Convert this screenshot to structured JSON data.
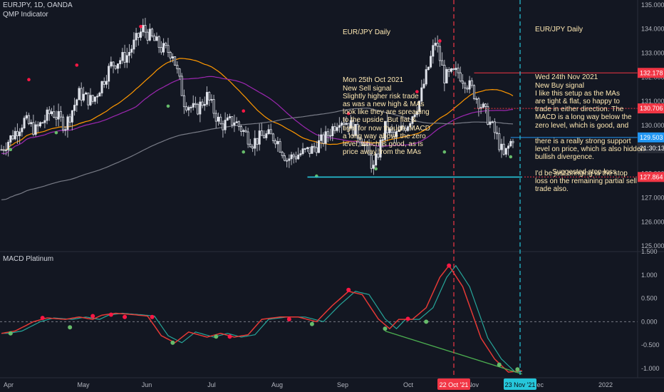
{
  "header": {
    "symbol_line": "EURJPY, 1D, OANDA",
    "indicator_name": "QMP Indicator",
    "macd_name": "MACD Platinum"
  },
  "notes": {
    "left": {
      "title": "EUR/JPY Daily",
      "lines": [
        "Mon 25th Oct 2021",
        "New Sell signal",
        "Slightly higher risk trade",
        "as was a new high & MAs",
        "look like they are spreading",
        "to the upside. But flat &",
        "tight for now though. MACD",
        "a long way above the zero",
        "level, which is good, as is",
        "price away from the MAs"
      ]
    },
    "right": {
      "title": "EUR/JPY Daily",
      "lines": [
        "Wed 24th Nov 2021",
        "New Buy signal",
        "I like this setup as the MAs",
        "are tight & flat, so happy to",
        "trade in either direction. The",
        "MACD is a long way below the",
        "zero level, which is good, and",
        "",
        "there is a really strong support",
        "level on price, which is also hidden",
        "bullish divergence.",
        "",
        "I'd be just bringing in the stop",
        "loss on the remaining partial sell",
        "trade also."
      ]
    },
    "stop": "Suggested stop loss"
  },
  "colors": {
    "background": "#131722",
    "up": "#e0e3eb",
    "down": "#e0e3eb",
    "ma_orange": "#ff9800",
    "ma_purple": "#9c27b0",
    "ma_gray": "#787b86",
    "sell_dot": "#ff1744",
    "buy_dot": "#66bb6a",
    "red_line": "#f23645",
    "cyan_line": "#26c6da",
    "blue_line": "#2196f3",
    "macd_line": "#e53935",
    "signal_line": "#26a69a",
    "divergence": "#4caf50",
    "note_text": "#ffe9b3"
  },
  "chart_data": [
    {
      "type": "candlestick",
      "title": "EURJPY, 1D, OANDA",
      "x_labels": [
        "Apr",
        "May",
        "Jun",
        "Jul",
        "Aug",
        "Sep",
        "Oct",
        "Nov",
        "Dec",
        "2022"
      ],
      "y_ticks": [
        125.0,
        126.0,
        127.0,
        128.0,
        129.0,
        130.0,
        131.0,
        132.0,
        133.0,
        134.0,
        135.0
      ],
      "y_tick_labels": [
        "125.000",
        "126.000",
        "127.000",
        "128.000",
        "129.000",
        "130.000",
        "131.000",
        "132.000",
        "133.000",
        "134.000",
        "135.000"
      ],
      "ylim": [
        124.8,
        135.2
      ],
      "grid": false,
      "close_path": [
        [
          0,
          129.0
        ],
        [
          5,
          129.6
        ],
        [
          10,
          130.2
        ],
        [
          15,
          129.8
        ],
        [
          22,
          130.6
        ],
        [
          28,
          130.0
        ],
        [
          34,
          131.3
        ],
        [
          40,
          131.0
        ],
        [
          48,
          132.5
        ],
        [
          55,
          132.9
        ],
        [
          62,
          134.0
        ],
        [
          66,
          133.6
        ],
        [
          70,
          133.2
        ],
        [
          75,
          133.0
        ],
        [
          80,
          131.0
        ],
        [
          85,
          130.6
        ],
        [
          90,
          131.2
        ],
        [
          96,
          130.0
        ],
        [
          102,
          130.2
        ],
        [
          110,
          129.3
        ],
        [
          115,
          129.6
        ],
        [
          120,
          129.5
        ],
        [
          125,
          128.6
        ],
        [
          130,
          128.8
        ],
        [
          136,
          129.0
        ],
        [
          142,
          129.5
        ],
        [
          148,
          130.3
        ],
        [
          152,
          130.1
        ],
        [
          158,
          129.4
        ],
        [
          163,
          128.2
        ],
        [
          168,
          129.9
        ],
        [
          172,
          129.5
        ],
        [
          178,
          130.1
        ],
        [
          183,
          131.0
        ],
        [
          190,
          133.5
        ],
        [
          194,
          132.0
        ],
        [
          200,
          132.2
        ],
        [
          206,
          131.5
        ],
        [
          212,
          130.5
        ],
        [
          217,
          129.5
        ],
        [
          220,
          128.7
        ],
        [
          224,
          129.5
        ]
      ],
      "bars": 224,
      "price_levels": [
        {
          "value": 132.178,
          "label": "132.178",
          "color": "#f23645"
        },
        {
          "value": 130.706,
          "label": "130.706",
          "color": "#f23645",
          "style": "dotted"
        },
        {
          "value": 129.503,
          "label": "129.503",
          "color": "#2196f3"
        },
        {
          "value": 127.864,
          "label": "127.864",
          "color": "#f23645",
          "style": "dotted"
        }
      ],
      "countdown_label": "21:30:13",
      "support_level": 127.86,
      "sell_signals": [
        [
          12,
          131.9
        ],
        [
          33,
          132.5
        ],
        [
          61,
          134.1
        ],
        [
          106,
          130.6
        ],
        [
          152,
          130.5
        ],
        [
          182,
          131.4
        ],
        [
          192,
          133.5
        ]
      ],
      "buy_signals": [
        [
          4,
          129.0
        ],
        [
          24,
          129.7
        ],
        [
          73,
          130.8
        ],
        [
          106,
          128.9
        ],
        [
          138,
          127.9
        ],
        [
          164,
          128.2
        ],
        [
          194,
          128.9
        ],
        [
          223,
          128.7
        ]
      ]
    },
    {
      "type": "line",
      "title": "MACD Platinum",
      "y_ticks": [
        -1.0,
        -0.5,
        0.0,
        0.5,
        1.0,
        1.5
      ],
      "y_tick_labels": [
        "-1.000",
        "-0.500",
        "0.000",
        "0.500",
        "1.000",
        "1.500"
      ],
      "ylim": [
        -1.2,
        1.5
      ],
      "macd_path": [
        [
          0,
          -0.25
        ],
        [
          6,
          -0.2
        ],
        [
          14,
          0.0
        ],
        [
          20,
          0.08
        ],
        [
          28,
          0.05
        ],
        [
          34,
          0.1
        ],
        [
          40,
          0.05
        ],
        [
          44,
          0.14
        ],
        [
          50,
          0.18
        ],
        [
          58,
          0.15
        ],
        [
          64,
          0.12
        ],
        [
          70,
          -0.3
        ],
        [
          76,
          -0.45
        ],
        [
          82,
          -0.22
        ],
        [
          90,
          -0.33
        ],
        [
          96,
          -0.25
        ],
        [
          102,
          -0.33
        ],
        [
          108,
          -0.28
        ],
        [
          114,
          0.05
        ],
        [
          122,
          0.1
        ],
        [
          130,
          0.1
        ],
        [
          138,
          0.0
        ],
        [
          145,
          0.35
        ],
        [
          152,
          0.65
        ],
        [
          158,
          0.58
        ],
        [
          165,
          0.06
        ],
        [
          170,
          -0.15
        ],
        [
          174,
          0.05
        ],
        [
          180,
          0.05
        ],
        [
          186,
          0.3
        ],
        [
          192,
          0.95
        ],
        [
          196,
          1.2
        ],
        [
          202,
          0.75
        ],
        [
          210,
          -0.35
        ],
        [
          216,
          -0.8
        ],
        [
          222,
          -1.08
        ],
        [
          228,
          -1.05
        ]
      ],
      "sell_signals": [
        [
          18,
          0.08
        ],
        [
          40,
          0.12
        ],
        [
          48,
          0.15
        ],
        [
          54,
          0.1
        ],
        [
          66,
          0.1
        ],
        [
          100,
          -0.32
        ],
        [
          126,
          0.05
        ],
        [
          152,
          0.68
        ],
        [
          178,
          0.06
        ],
        [
          196,
          1.2
        ]
      ],
      "buy_signals": [
        [
          4,
          -0.25
        ],
        [
          30,
          -0.12
        ],
        [
          75,
          -0.45
        ],
        [
          94,
          -0.32
        ],
        [
          136,
          -0.05
        ],
        [
          168,
          -0.15
        ],
        [
          186,
          0.0
        ],
        [
          218,
          -0.92
        ],
        [
          226,
          -1.02
        ]
      ],
      "divergence_line": [
        [
          168,
          -0.2
        ],
        [
          228,
          -1.12
        ]
      ],
      "zero_line": 0.0
    }
  ],
  "markers": {
    "red_date": "22 Oct '21",
    "cyan_date": "23 Nov '21"
  }
}
